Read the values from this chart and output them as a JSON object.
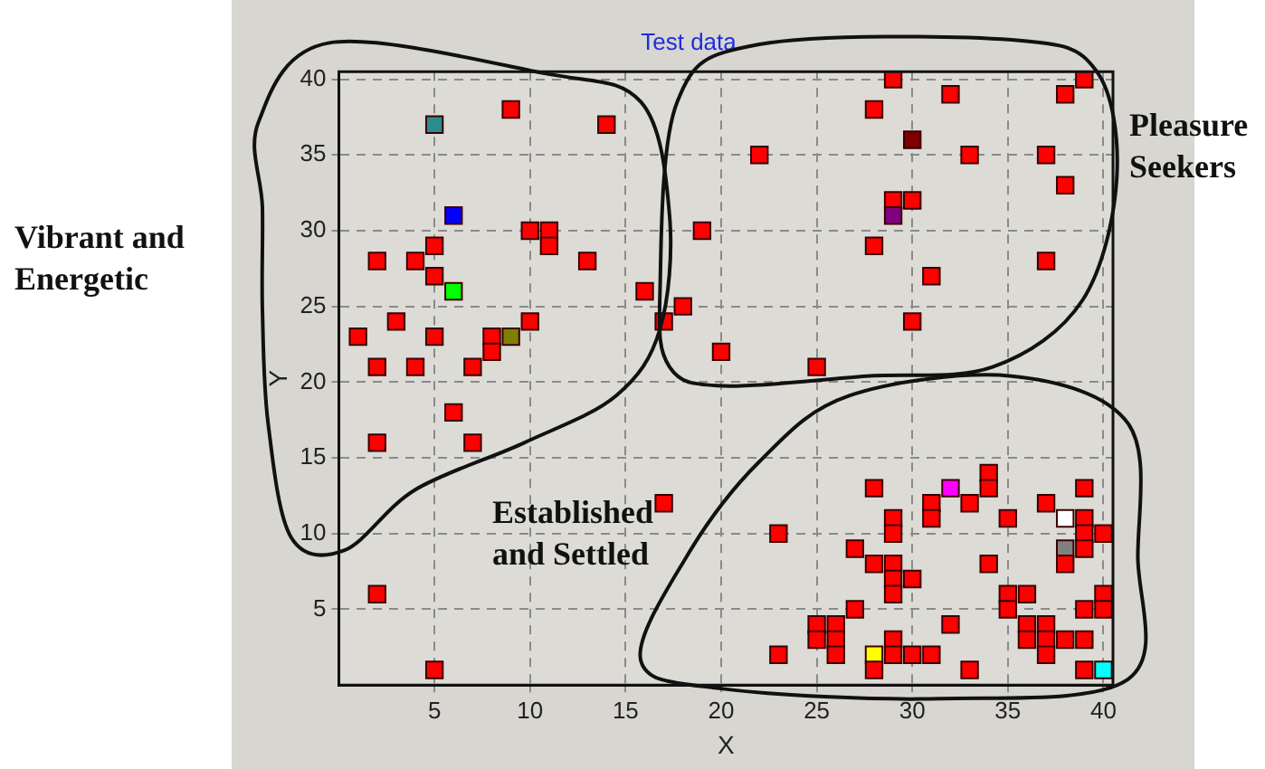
{
  "chart_data": {
    "type": "scatter",
    "title": "Test data",
    "xlabel": "X",
    "ylabel": "Y",
    "xlim": [
      0,
      40.5
    ],
    "ylim": [
      0,
      40.5
    ],
    "xticks": [
      5,
      10,
      15,
      20,
      25,
      30,
      35,
      40
    ],
    "yticks": [
      5,
      10,
      15,
      20,
      25,
      30,
      35,
      40
    ],
    "grid": true,
    "marker": "square",
    "annotations": [
      "Vibrant and Energetic",
      "Pleasure Seekers",
      "Established and Settled"
    ],
    "series": [
      {
        "x": [
          5,
          9,
          14,
          6,
          10,
          11,
          11,
          13,
          19,
          2,
          4,
          5,
          5,
          6,
          16,
          18,
          17,
          3,
          1,
          5,
          8,
          9,
          10,
          8,
          2,
          4,
          7,
          20,
          6,
          2,
          7,
          17,
          2,
          5
        ],
        "values": [
          37,
          38,
          37,
          31,
          30,
          30,
          29,
          28,
          30,
          28,
          28,
          29,
          27,
          26,
          26,
          25,
          24,
          24,
          23,
          23,
          23,
          23,
          24,
          22,
          21,
          21,
          21,
          22,
          18,
          16,
          16,
          12,
          6,
          1
        ],
        "colors": [
          "#2a8c8c",
          "#ff0000",
          "#ff0000",
          "#0000ff",
          "#ff0000",
          "#ff0000",
          "#ff0000",
          "#ff0000",
          "#ff0000",
          "#ff0000",
          "#ff0000",
          "#ff0000",
          "#ff0000",
          "#00ff00",
          "#ff0000",
          "#ff0000",
          "#ff0000",
          "#ff0000",
          "#ff0000",
          "#ff0000",
          "#ff0000",
          "#808000",
          "#ff0000",
          "#ff0000",
          "#ff0000",
          "#ff0000",
          "#ff0000",
          "#ff0000",
          "#ff0000",
          "#ff0000",
          "#ff0000",
          "#ff0000",
          "#ff0000",
          "#ff0000"
        ]
      },
      {
        "x": [
          29,
          28,
          32,
          39,
          38,
          30,
          22,
          33,
          37,
          38,
          29,
          30,
          29,
          28,
          31,
          37,
          30,
          25
        ],
        "values": [
          40,
          38,
          39,
          40,
          39,
          36,
          35,
          35,
          35,
          33,
          32,
          32,
          31,
          29,
          27,
          28,
          24,
          21
        ],
        "colors": [
          "#ff0000",
          "#ff0000",
          "#ff0000",
          "#ff0000",
          "#ff0000",
          "#800000",
          "#ff0000",
          "#ff0000",
          "#ff0000",
          "#ff0000",
          "#ff0000",
          "#ff0000",
          "#800080",
          "#ff0000",
          "#ff0000",
          "#ff0000",
          "#ff0000",
          "#ff0000"
        ]
      },
      {
        "x": [
          28,
          32,
          34,
          34,
          31,
          31,
          33,
          29,
          29,
          35,
          37,
          38,
          39,
          39,
          39,
          40,
          39,
          38,
          38,
          23,
          27,
          28,
          29,
          29,
          30,
          29,
          34,
          35,
          36,
          35,
          40,
          40,
          39,
          27,
          25,
          25,
          26,
          26,
          26,
          23,
          28,
          28,
          29,
          29,
          30,
          31,
          32,
          33,
          36,
          37,
          36,
          37,
          37,
          38,
          39,
          39,
          40
        ],
        "values": [
          13,
          13,
          14,
          13,
          12,
          11,
          12,
          11,
          10,
          11,
          12,
          11,
          13,
          11,
          10,
          10,
          9,
          9,
          8,
          10,
          9,
          8,
          8,
          7,
          7,
          6,
          8,
          6,
          6,
          5,
          6,
          5,
          5,
          5,
          4,
          3,
          4,
          3,
          2,
          2,
          2,
          1,
          3,
          2,
          2,
          2,
          4,
          1,
          4,
          4,
          3,
          3,
          2,
          3,
          3,
          1,
          1
        ],
        "colors": [
          "#ff0000",
          "#ff00ff",
          "#ff0000",
          "#ff0000",
          "#ff0000",
          "#ff0000",
          "#ff0000",
          "#ff0000",
          "#ff0000",
          "#ff0000",
          "#ff0000",
          "#ffffff",
          "#ff0000",
          "#ff0000",
          "#ff0000",
          "#ff0000",
          "#ff0000",
          "#808080",
          "#ff0000",
          "#ff0000",
          "#ff0000",
          "#ff0000",
          "#ff0000",
          "#ff0000",
          "#ff0000",
          "#ff0000",
          "#ff0000",
          "#ff0000",
          "#ff0000",
          "#ff0000",
          "#ff0000",
          "#ff0000",
          "#ff0000",
          "#ff0000",
          "#ff0000",
          "#ff0000",
          "#ff0000",
          "#ff0000",
          "#ff0000",
          "#ff0000",
          "#ffff00",
          "#ff0000",
          "#ff0000",
          "#ff0000",
          "#ff0000",
          "#ff0000",
          "#ff0000",
          "#ff0000",
          "#ff0000",
          "#ff0000",
          "#ff0000",
          "#ff0000",
          "#ff0000",
          "#ff0000",
          "#ff0000",
          "#ff0000",
          "#00ffff"
        ]
      }
    ]
  }
}
